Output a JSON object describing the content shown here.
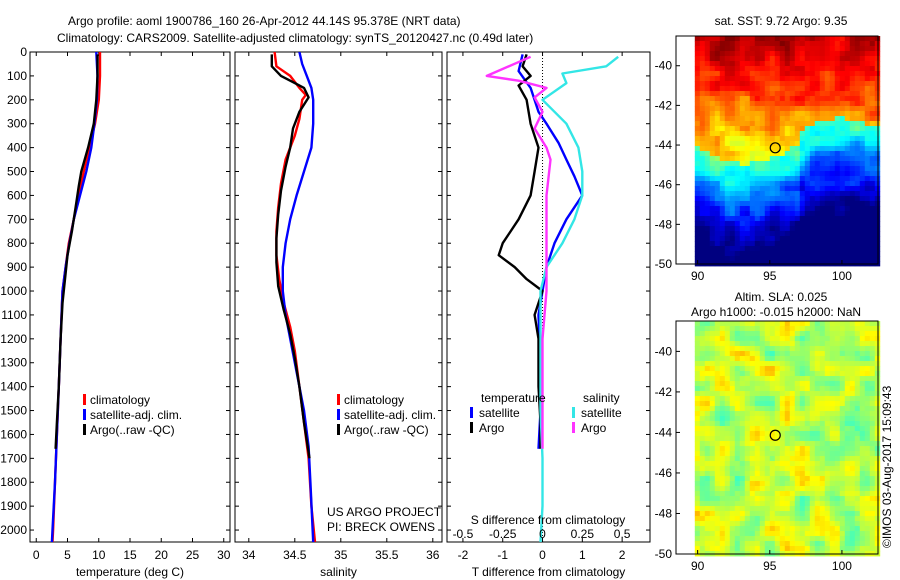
{
  "header": {
    "line1": "Argo profile: aoml 1900786_160 26-Apr-2012 44.14S 95.378E (NRT data)",
    "line2": "Climatology: CARS2009. Satellite-adjusted climatology: synTS_20120427.nc (0.49d later)"
  },
  "credits": {
    "project": "US ARGO PROJECT",
    "pi": "PI: BRECK OWENS",
    "watermark": "©IMOS 03-Aug-2017 15:09:43"
  },
  "colors": {
    "climatology": "#ff0000",
    "satellite": "#0000ff",
    "argo": "#000000",
    "sal_satellite": "#33e6e6",
    "sal_argo": "#ff33ff"
  },
  "chart_data": [
    {
      "type": "line",
      "id": "temperature",
      "xlabel": "temperature (deg C)",
      "xlim": [
        -1,
        31
      ],
      "ylim": [
        0,
        2050
      ],
      "yreverse": true,
      "xticks": [
        0,
        5,
        10,
        15,
        20,
        25,
        30
      ],
      "yticks": [
        0,
        100,
        200,
        300,
        400,
        500,
        600,
        700,
        800,
        900,
        1000,
        1100,
        1200,
        1300,
        1400,
        1500,
        1600,
        1700,
        1800,
        1900,
        2000
      ],
      "legend": [
        "climatology",
        "satellite-adj. clim.",
        "Argo(..raw -QC)"
      ],
      "series": [
        {
          "name": "climatology",
          "color": "#ff0000",
          "points": [
            [
              10.2,
              0
            ],
            [
              10.2,
              100
            ],
            [
              10.0,
              200
            ],
            [
              9.4,
              300
            ],
            [
              8.5,
              400
            ],
            [
              7.6,
              500
            ],
            [
              6.8,
              600
            ],
            [
              6.0,
              700
            ],
            [
              5.2,
              800
            ],
            [
              4.7,
              900
            ],
            [
              4.2,
              1000
            ],
            [
              3.9,
              1200
            ],
            [
              3.6,
              1400
            ],
            [
              3.3,
              1600
            ],
            [
              3.0,
              1800
            ],
            [
              2.7,
              2000
            ],
            [
              2.6,
              2050
            ]
          ]
        },
        {
          "name": "satellite-adj. clim.",
          "color": "#0000ff",
          "points": [
            [
              9.6,
              0
            ],
            [
              9.8,
              100
            ],
            [
              9.7,
              200
            ],
            [
              9.3,
              300
            ],
            [
              8.8,
              400
            ],
            [
              8.0,
              500
            ],
            [
              7.0,
              600
            ],
            [
              6.0,
              700
            ],
            [
              5.3,
              800
            ],
            [
              4.7,
              900
            ],
            [
              4.2,
              1000
            ],
            [
              3.9,
              1200
            ],
            [
              3.6,
              1400
            ],
            [
              3.3,
              1600
            ],
            [
              3.0,
              1800
            ],
            [
              2.6,
              2000
            ],
            [
              2.5,
              2050
            ]
          ]
        },
        {
          "name": "Argo(..raw -QC)",
          "color": "#000000",
          "points": [
            [
              9.8,
              10
            ],
            [
              9.8,
              100
            ],
            [
              9.6,
              200
            ],
            [
              9.2,
              300
            ],
            [
              8.3,
              400
            ],
            [
              7.2,
              500
            ],
            [
              6.8,
              560
            ],
            [
              6.3,
              650
            ],
            [
              5.7,
              750
            ],
            [
              5.0,
              850
            ],
            [
              4.6,
              950
            ],
            [
              4.2,
              1050
            ],
            [
              3.9,
              1200
            ],
            [
              3.6,
              1400
            ],
            [
              3.3,
              1550
            ],
            [
              3.1,
              1660
            ]
          ]
        }
      ]
    },
    {
      "type": "line",
      "id": "salinity",
      "xlabel": "salinity",
      "xlim": [
        33.85,
        36.1
      ],
      "ylim": [
        0,
        2050
      ],
      "yreverse": true,
      "xticks": [
        34,
        34.5,
        35,
        35.5,
        36
      ],
      "legend": [
        "climatology",
        "satellite-adj. clim.",
        "Argo(..raw -QC)"
      ],
      "series": [
        {
          "name": "climatology",
          "color": "#ff0000",
          "points": [
            [
              34.28,
              0
            ],
            [
              34.3,
              60
            ],
            [
              34.45,
              100
            ],
            [
              34.55,
              150
            ],
            [
              34.62,
              180
            ],
            [
              34.58,
              200
            ],
            [
              34.55,
              280
            ],
            [
              34.5,
              350
            ],
            [
              34.4,
              450
            ],
            [
              34.35,
              550
            ],
            [
              34.32,
              650
            ],
            [
              34.3,
              750
            ],
            [
              34.3,
              850
            ],
            [
              34.33,
              950
            ],
            [
              34.38,
              1050
            ],
            [
              34.45,
              1150
            ],
            [
              34.5,
              1250
            ],
            [
              34.55,
              1400
            ],
            [
              34.6,
              1550
            ],
            [
              34.65,
              1700
            ],
            [
              34.68,
              1900
            ],
            [
              34.72,
              2050
            ]
          ]
        },
        {
          "name": "satellite-adj. clim.",
          "color": "#0000ff",
          "points": [
            [
              34.55,
              0
            ],
            [
              34.58,
              50
            ],
            [
              34.63,
              100
            ],
            [
              34.68,
              150
            ],
            [
              34.7,
              200
            ],
            [
              34.7,
              300
            ],
            [
              34.68,
              400
            ],
            [
              34.6,
              500
            ],
            [
              34.52,
              600
            ],
            [
              34.45,
              700
            ],
            [
              34.4,
              800
            ],
            [
              34.37,
              900
            ],
            [
              34.37,
              1000
            ],
            [
              34.4,
              1100
            ],
            [
              34.45,
              1200
            ],
            [
              34.5,
              1300
            ],
            [
              34.55,
              1400
            ],
            [
              34.6,
              1500
            ],
            [
              34.65,
              1650
            ],
            [
              34.67,
              1800
            ],
            [
              34.7,
              2050
            ]
          ]
        },
        {
          "name": "Argo(..raw -QC)",
          "color": "#000000",
          "points": [
            [
              34.25,
              10
            ],
            [
              34.25,
              60
            ],
            [
              34.35,
              100
            ],
            [
              34.5,
              130
            ],
            [
              34.6,
              150
            ],
            [
              34.65,
              190
            ],
            [
              34.55,
              250
            ],
            [
              34.48,
              320
            ],
            [
              34.45,
              400
            ],
            [
              34.4,
              480
            ],
            [
              34.35,
              580
            ],
            [
              34.32,
              680
            ],
            [
              34.3,
              780
            ],
            [
              34.3,
              880
            ],
            [
              34.32,
              980
            ],
            [
              34.38,
              1080
            ],
            [
              34.45,
              1180
            ],
            [
              34.5,
              1280
            ],
            [
              34.55,
              1400
            ],
            [
              34.6,
              1550
            ],
            [
              34.66,
              1700
            ]
          ]
        }
      ]
    },
    {
      "type": "line",
      "id": "difference",
      "xlabel": "T difference from climatology",
      "xlabel2": "S difference from climatology",
      "xlim": [
        -2.4,
        2.7
      ],
      "ylim": [
        0,
        2050
      ],
      "yreverse": true,
      "xticks": [
        -2,
        -1,
        0,
        1,
        2
      ],
      "xticks2": [
        -0.5,
        -0.25,
        0,
        0.25,
        0.5
      ],
      "xticks2_labels": [
        "-0.5",
        "-0.25",
        "0",
        "0.25",
        "0.5"
      ],
      "legend_temperature": "temperature",
      "legend_salinity": "salinity",
      "legend_satellite": "satellite",
      "legend_argo": "Argo",
      "series": [
        {
          "name": "T satellite",
          "color": "#0000ff",
          "points": [
            [
              -0.5,
              10
            ],
            [
              -0.6,
              80
            ],
            [
              -0.3,
              150
            ],
            [
              -0.1,
              250
            ],
            [
              0.1,
              300
            ],
            [
              0.4,
              380
            ],
            [
              0.6,
              450
            ],
            [
              0.8,
              520
            ],
            [
              1.0,
              600
            ],
            [
              0.6,
              700
            ],
            [
              0.3,
              800
            ],
            [
              0.1,
              900
            ],
            [
              0.0,
              1000
            ],
            [
              -0.1,
              1100
            ],
            [
              -0.05,
              1300
            ],
            [
              -0.05,
              1500
            ],
            [
              -0.1,
              1660
            ]
          ]
        },
        {
          "name": "T Argo",
          "color": "#000000",
          "points": [
            [
              -0.4,
              10
            ],
            [
              -0.5,
              60
            ],
            [
              -0.3,
              100
            ],
            [
              -0.6,
              140
            ],
            [
              -0.4,
              200
            ],
            [
              -0.3,
              300
            ],
            [
              -0.1,
              400
            ],
            [
              -0.2,
              500
            ],
            [
              -0.3,
              600
            ],
            [
              -0.6,
              700
            ],
            [
              -1.0,
              800
            ],
            [
              -1.1,
              850
            ],
            [
              -0.7,
              900
            ],
            [
              -0.4,
              950
            ],
            [
              0.0,
              1000
            ],
            [
              -0.2,
              1100
            ],
            [
              -0.1,
              1200
            ],
            [
              -0.1,
              1400
            ],
            [
              -0.05,
              1550
            ],
            [
              -0.05,
              1660
            ]
          ]
        },
        {
          "name": "S satellite",
          "color": "#33e6e6",
          "points": [
            [
              1.9,
              20
            ],
            [
              1.6,
              60
            ],
            [
              0.5,
              90
            ],
            [
              0.6,
              130
            ],
            [
              0.0,
              200
            ],
            [
              0.6,
              300
            ],
            [
              0.9,
              400
            ],
            [
              1.0,
              500
            ],
            [
              1.0,
              600
            ],
            [
              0.8,
              700
            ],
            [
              0.5,
              800
            ],
            [
              0.1,
              900
            ],
            [
              -0.05,
              1000
            ],
            [
              -0.05,
              1100
            ],
            [
              -0.05,
              1300
            ],
            [
              -0.05,
              1500
            ],
            [
              0.0,
              1700
            ],
            [
              0.0,
              1900
            ],
            [
              -0.05,
              2050
            ]
          ]
        },
        {
          "name": "S Argo",
          "color": "#ff33ff",
          "points": [
            [
              -0.3,
              20
            ],
            [
              -1.4,
              100
            ],
            [
              -0.6,
              120
            ],
            [
              0.1,
              150
            ],
            [
              -0.2,
              190
            ],
            [
              0.0,
              250
            ],
            [
              -0.2,
              320
            ],
            [
              0.1,
              400
            ],
            [
              0.2,
              450
            ],
            [
              0.1,
              600
            ],
            [
              0.1,
              800
            ],
            [
              0.1,
              1000
            ],
            [
              0.0,
              1200
            ],
            [
              0.0,
              1400
            ],
            [
              0.0,
              1660
            ]
          ]
        }
      ]
    },
    {
      "type": "heatmap",
      "id": "sst-map",
      "title": "sat. SST: 9.72 Argo: 9.35",
      "xlim": [
        88.5,
        102.5
      ],
      "ylim": [
        -50,
        -38.5
      ],
      "xticks": [
        90,
        95,
        100
      ],
      "yticks": [
        -40,
        -42,
        -44,
        -46,
        -48,
        -50
      ],
      "marker": [
        95.378,
        -44.14
      ]
    },
    {
      "type": "heatmap",
      "id": "sla-map",
      "title": "Altim. SLA: 0.025",
      "title2": "Argo h1000: -0.015 h2000: NaN",
      "xlim": [
        88.5,
        102.5
      ],
      "ylim": [
        -50,
        -38.5
      ],
      "xticks": [
        90,
        95,
        100
      ],
      "yticks": [
        -40,
        -42,
        -44,
        -46,
        -48,
        -50
      ],
      "marker": [
        95.378,
        -44.14
      ]
    }
  ]
}
